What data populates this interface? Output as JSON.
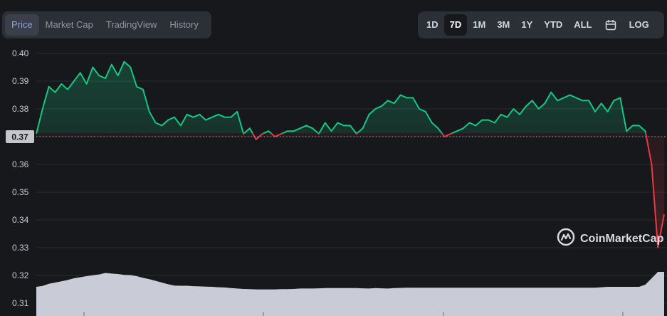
{
  "tabs": [
    {
      "label": "Price",
      "active": true
    },
    {
      "label": "Market Cap",
      "active": false
    },
    {
      "label": "TradingView",
      "active": false
    },
    {
      "label": "History",
      "active": false
    }
  ],
  "ranges": [
    {
      "label": "1D",
      "active": false
    },
    {
      "label": "7D",
      "active": true
    },
    {
      "label": "1M",
      "active": false
    },
    {
      "label": "3M",
      "active": false
    },
    {
      "label": "1Y",
      "active": false
    },
    {
      "label": "YTD",
      "active": false
    },
    {
      "label": "ALL",
      "active": false
    }
  ],
  "log_label": "LOG",
  "watermark": "CoinMarketCap",
  "colors": {
    "up": "#16c784",
    "down": "#ea3943",
    "volume": "#d9dce6",
    "background": "#17181b"
  },
  "chart_data": {
    "type": "line",
    "title": "",
    "xlabel": "",
    "ylabel": "",
    "ylim": [
      0.31,
      0.4
    ],
    "yticks": [
      "0.40",
      "0.39",
      "0.38",
      "0.37",
      "0.36",
      "0.35",
      "0.34",
      "0.33",
      "0.32",
      "0.31"
    ],
    "reference_price": 0.37,
    "reference_label": "0.37",
    "grid": "horizontal",
    "x": [
      0,
      2,
      4,
      6,
      8,
      10,
      12,
      14,
      16,
      18,
      20,
      22,
      24,
      26,
      28,
      30,
      32,
      34,
      36,
      38,
      40,
      42,
      44,
      46,
      48,
      50,
      52,
      54,
      56,
      58,
      60,
      62,
      64,
      66,
      68,
      70,
      72,
      74,
      76,
      78,
      80,
      82,
      84,
      86,
      88,
      90,
      92,
      94,
      96,
      98,
      100,
      102,
      104,
      106,
      108,
      110,
      112,
      114,
      116,
      118,
      120,
      122,
      124,
      126,
      128,
      130,
      132,
      134,
      136,
      138,
      140,
      142,
      144,
      146,
      148,
      150,
      152,
      154,
      156,
      158,
      160,
      162,
      164,
      166,
      168,
      170,
      172,
      174,
      176,
      178,
      180,
      182,
      184,
      186,
      188,
      190,
      192,
      194,
      196,
      198,
      200
    ],
    "series": [
      {
        "role": "price",
        "values": [
          0.371,
          0.38,
          0.388,
          0.386,
          0.389,
          0.387,
          0.39,
          0.393,
          0.389,
          0.395,
          0.392,
          0.391,
          0.396,
          0.392,
          0.397,
          0.395,
          0.388,
          0.387,
          0.379,
          0.375,
          0.374,
          0.376,
          0.377,
          0.374,
          0.378,
          0.377,
          0.378,
          0.376,
          0.377,
          0.378,
          0.377,
          0.377,
          0.379,
          0.371,
          0.373,
          0.369,
          0.371,
          0.372,
          0.37,
          0.371,
          0.372,
          0.372,
          0.373,
          0.374,
          0.373,
          0.371,
          0.375,
          0.372,
          0.375,
          0.374,
          0.374,
          0.371,
          0.373,
          0.378,
          0.38,
          0.381,
          0.383,
          0.382,
          0.385,
          0.384,
          0.384,
          0.38,
          0.379,
          0.375,
          0.373,
          0.37,
          0.371,
          0.372,
          0.373,
          0.375,
          0.374,
          0.376,
          0.376,
          0.375,
          0.378,
          0.377,
          0.38,
          0.378,
          0.381,
          0.383,
          0.38,
          0.382,
          0.386,
          0.383,
          0.384,
          0.385,
          0.384,
          0.383,
          0.383,
          0.379,
          0.382,
          0.379,
          0.383,
          0.384,
          0.372,
          0.374,
          0.374,
          0.372,
          0.36,
          0.33,
          0.342
        ]
      },
      {
        "role": "volume",
        "values": [
          0.3,
          0.34,
          0.44,
          0.5,
          0.56,
          0.62,
          0.7,
          0.75,
          0.8,
          0.84,
          0.88,
          0.95,
          0.92,
          0.9,
          0.86,
          0.85,
          0.8,
          0.72,
          0.66,
          0.58,
          0.5,
          0.42,
          0.36,
          0.35,
          0.35,
          0.33,
          0.32,
          0.31,
          0.3,
          0.28,
          0.27,
          0.24,
          0.22,
          0.2,
          0.19,
          0.18,
          0.18,
          0.18,
          0.18,
          0.19,
          0.19,
          0.2,
          0.22,
          0.22,
          0.22,
          0.23,
          0.24,
          0.24,
          0.24,
          0.24,
          0.24,
          0.24,
          0.23,
          0.22,
          0.24,
          0.23,
          0.22,
          0.24,
          0.25,
          0.26,
          0.26,
          0.26,
          0.26,
          0.26,
          0.26,
          0.26,
          0.26,
          0.26,
          0.26,
          0.26,
          0.26,
          0.26,
          0.26,
          0.26,
          0.26,
          0.26,
          0.26,
          0.26,
          0.26,
          0.26,
          0.26,
          0.26,
          0.26,
          0.26,
          0.26,
          0.26,
          0.26,
          0.26,
          0.26,
          0.26,
          0.28,
          0.3,
          0.3,
          0.3,
          0.3,
          0.3,
          0.3,
          0.4,
          0.7,
          1.0,
          1.0
        ]
      }
    ]
  }
}
